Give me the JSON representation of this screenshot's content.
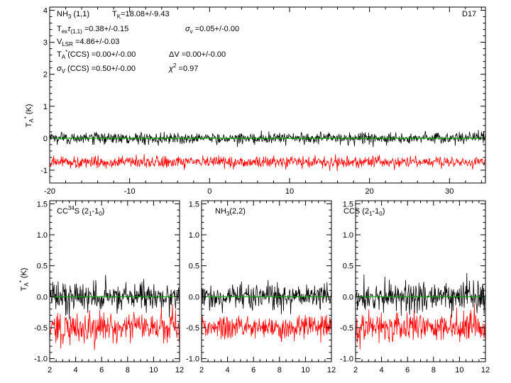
{
  "colors": {
    "fit": "#ff0000",
    "model": "#00aa00",
    "data": "#000000",
    "frame": "#000000"
  },
  "chart_data": [
    {
      "id": "top",
      "type": "line",
      "ylabel": "T*A (K)",
      "xlim": [
        -20,
        34.5
      ],
      "ylim": [
        -1.4,
        4.1
      ],
      "xticks": [
        -20,
        -10,
        0,
        10,
        20,
        30
      ],
      "yticks": [
        -1,
        0,
        1,
        2,
        3,
        4
      ],
      "panel_label": "D17",
      "annotations": [
        "NH3 (1,1)",
        "TK=18.08+/-9.43",
        "Texτ(1,1) =0.38+/-0.15",
        "σv =0.05+/-0.00",
        "VLSR =4.86+/-0.03",
        "T*A(CCS) =0.00+/-0.00",
        "ΔV =0.00+/-0.00",
        "σV (CCS) =0.50+/-0.00",
        "χ2 =0.97"
      ],
      "series": [
        {
          "role": "data",
          "baseline": 0.0,
          "noise": 0.09
        },
        {
          "role": "fit",
          "baseline": -0.75,
          "noise": 0.09
        },
        {
          "role": "model",
          "baseline": 0.0,
          "noise": 0.0
        }
      ]
    },
    {
      "id": "ccs34",
      "type": "line",
      "ylabel": "T*A (K)",
      "title": "CC34S (21-10)",
      "xlim": [
        2,
        12
      ],
      "ylim": [
        -1.05,
        1.55
      ],
      "xticks": [
        2,
        4,
        6,
        8,
        10,
        12
      ],
      "yticks": [
        -1.0,
        -0.5,
        0.0,
        0.5,
        1.0,
        1.5
      ],
      "series": [
        {
          "role": "data",
          "baseline": 0.0,
          "noise": 0.12
        },
        {
          "role": "fit",
          "baseline": -0.5,
          "noise": 0.12
        },
        {
          "role": "model",
          "baseline": 0.0,
          "noise": 0.0
        }
      ]
    },
    {
      "id": "nh3_22",
      "type": "line",
      "title": "NH3(2,2)",
      "xlim": [
        2,
        12
      ],
      "ylim": [
        -1.05,
        1.55
      ],
      "xticks": [
        2,
        4,
        6,
        8,
        10,
        12
      ],
      "yticks": [
        -1.0,
        -0.5,
        0.0,
        0.5,
        1.0,
        1.5
      ],
      "series": [
        {
          "role": "data",
          "baseline": 0.0,
          "noise": 0.1
        },
        {
          "role": "fit",
          "baseline": -0.5,
          "noise": 0.1
        },
        {
          "role": "model",
          "baseline": 0.0,
          "noise": 0.0
        }
      ]
    },
    {
      "id": "ccs",
      "type": "line",
      "title": "CCS (21-10)",
      "xlim": [
        2,
        12
      ],
      "ylim": [
        -1.05,
        1.55
      ],
      "xticks": [
        2,
        4,
        6,
        8,
        10,
        12
      ],
      "yticks": [
        -1.0,
        -0.5,
        0.0,
        0.5,
        1.0,
        1.5
      ],
      "series": [
        {
          "role": "data",
          "baseline": 0.0,
          "noise": 0.12
        },
        {
          "role": "fit",
          "baseline": -0.5,
          "noise": 0.12
        },
        {
          "role": "model",
          "baseline": 0.0,
          "noise": 0.0
        }
      ]
    }
  ]
}
